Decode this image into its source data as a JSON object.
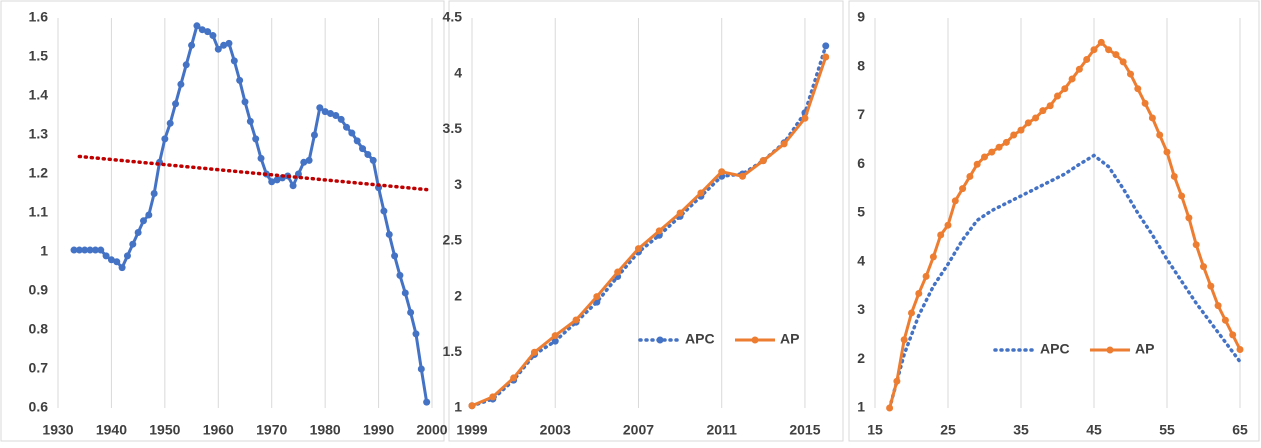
{
  "chart_data": [
    {
      "type": "line",
      "xlim": [
        1930,
        2000
      ],
      "xticks": [
        1930,
        1940,
        1950,
        1960,
        1970,
        1980,
        1990,
        2000
      ],
      "ylim": [
        0.6,
        1.6
      ],
      "yticks": [
        0.6,
        0.7,
        0.8,
        0.9,
        1,
        1.1,
        1.2,
        1.3,
        1.4,
        1.5,
        1.6
      ],
      "grid": true,
      "legend": false,
      "series": [
        {
          "color": "#4472c4",
          "style": "solid",
          "markers": true,
          "x": [
            1933,
            1934,
            1935,
            1936,
            1937,
            1938,
            1939,
            1940,
            1941,
            1942,
            1943,
            1944,
            1945,
            1946,
            1947,
            1948,
            1949,
            1950,
            1951,
            1952,
            1953,
            1954,
            1955,
            1956,
            1957,
            1958,
            1959,
            1960,
            1961,
            1962,
            1963,
            1964,
            1965,
            1966,
            1967,
            1968,
            1969,
            1970,
            1971,
            1972,
            1973,
            1974,
            1975,
            1976,
            1977,
            1978,
            1979,
            1980,
            1981,
            1982,
            1983,
            1984,
            1985,
            1986,
            1987,
            1988,
            1989,
            1990,
            1991,
            1992,
            1993,
            1994,
            1995,
            1996,
            1997,
            1998,
            1999
          ],
          "values": [
            1.005,
            1.005,
            1.005,
            1.005,
            1.005,
            1.005,
            0.99,
            0.98,
            0.975,
            0.96,
            0.99,
            1.02,
            1.05,
            1.08,
            1.095,
            1.15,
            1.23,
            1.29,
            1.33,
            1.38,
            1.43,
            1.48,
            1.53,
            1.58,
            1.57,
            1.565,
            1.555,
            1.52,
            1.53,
            1.535,
            1.49,
            1.44,
            1.385,
            1.335,
            1.29,
            1.24,
            1.2,
            1.18,
            1.185,
            1.19,
            1.195,
            1.17,
            1.2,
            1.23,
            1.235,
            1.3,
            1.37,
            1.36,
            1.355,
            1.35,
            1.34,
            1.32,
            1.305,
            1.285,
            1.265,
            1.25,
            1.235,
            1.165,
            1.105,
            1.045,
            0.99,
            0.94,
            0.895,
            0.845,
            0.79,
            0.7,
            0.615
          ]
        },
        {
          "color": "#c00000",
          "style": "dotted",
          "markers": false,
          "x": [
            1934,
            1999
          ],
          "values": [
            1.245,
            1.16
          ]
        }
      ]
    },
    {
      "type": "line",
      "xlim": [
        1999,
        2016.3
      ],
      "xticks": [
        1999,
        2003,
        2007,
        2011,
        2015
      ],
      "ylim": [
        1,
        4.5
      ],
      "yticks": [
        1,
        {
          "value": 1.5,
          "label": "1.5"
        },
        2,
        {
          "value": 2.5,
          "label": "2.5"
        },
        3,
        {
          "value": 3.5,
          "label": "3.5"
        },
        4,
        {
          "value": 4.5,
          "label": "4.5"
        }
      ],
      "grid": true,
      "legend": true,
      "series": [
        {
          "name": "APC",
          "color": "#4472c4",
          "style": "dotted",
          "markers": true,
          "x": [
            1999,
            2000,
            2001,
            2002,
            2003,
            2004,
            2005,
            2006,
            2007,
            2008,
            2009,
            2010,
            2011,
            2012,
            2013,
            2014,
            2015,
            2016
          ],
          "values": [
            1.02,
            1.08,
            1.25,
            1.48,
            1.6,
            1.77,
            1.95,
            2.18,
            2.4,
            2.55,
            2.72,
            2.9,
            3.08,
            3.1,
            3.22,
            3.38,
            3.65,
            4.25
          ]
        },
        {
          "name": "AP",
          "color": "#ed7d31",
          "style": "solid",
          "markers": true,
          "x": [
            1999,
            2000,
            2001,
            2002,
            2003,
            2004,
            2005,
            2006,
            2007,
            2008,
            2009,
            2010,
            2011,
            2012,
            2013,
            2014,
            2015,
            2016
          ],
          "values": [
            1.02,
            1.1,
            1.27,
            1.5,
            1.65,
            1.79,
            2.0,
            2.22,
            2.43,
            2.59,
            2.75,
            2.93,
            3.12,
            3.08,
            3.22,
            3.37,
            3.6,
            4.15
          ]
        }
      ]
    },
    {
      "type": "line",
      "xlim": [
        15,
        65
      ],
      "xticks": [
        15,
        25,
        35,
        45,
        55,
        65
      ],
      "ylim": [
        1,
        9
      ],
      "yticks": [
        1,
        2,
        3,
        4,
        5,
        6,
        7,
        8,
        9
      ],
      "grid": true,
      "legend": true,
      "series": [
        {
          "name": "APC",
          "color": "#4472c4",
          "style": "dotted",
          "markers": false,
          "x": [
            17,
            19,
            21,
            23,
            25,
            27,
            29,
            31,
            33,
            35,
            37,
            39,
            41,
            43,
            45,
            47,
            49,
            51,
            53,
            55,
            57,
            59,
            61,
            63,
            65
          ],
          "values": [
            1.0,
            2.1,
            2.9,
            3.5,
            3.95,
            4.45,
            4.85,
            5.05,
            5.2,
            5.35,
            5.5,
            5.65,
            5.8,
            6.0,
            6.18,
            5.95,
            5.5,
            5.0,
            4.55,
            4.05,
            3.6,
            3.15,
            2.75,
            2.35,
            1.95
          ]
        },
        {
          "name": "AP",
          "color": "#ed7d31",
          "style": "solid",
          "markers": true,
          "x": [
            17,
            18,
            19,
            20,
            21,
            22,
            23,
            24,
            25,
            26,
            27,
            28,
            29,
            30,
            31,
            32,
            33,
            34,
            35,
            36,
            37,
            38,
            39,
            40,
            41,
            42,
            43,
            44,
            45,
            46,
            47,
            48,
            49,
            50,
            51,
            52,
            53,
            54,
            55,
            56,
            57,
            58,
            59,
            60,
            61,
            62,
            63,
            64,
            65
          ],
          "values": [
            1.0,
            1.55,
            2.4,
            2.95,
            3.35,
            3.7,
            4.1,
            4.55,
            4.75,
            5.25,
            5.5,
            5.75,
            6.0,
            6.15,
            6.25,
            6.35,
            6.45,
            6.6,
            6.7,
            6.85,
            6.95,
            7.1,
            7.2,
            7.4,
            7.55,
            7.75,
            7.95,
            8.15,
            8.35,
            8.5,
            8.35,
            8.25,
            8.1,
            7.85,
            7.55,
            7.25,
            6.95,
            6.6,
            6.25,
            5.75,
            5.35,
            4.9,
            4.35,
            3.9,
            3.5,
            3.1,
            2.8,
            2.5,
            2.2
          ]
        }
      ]
    }
  ]
}
